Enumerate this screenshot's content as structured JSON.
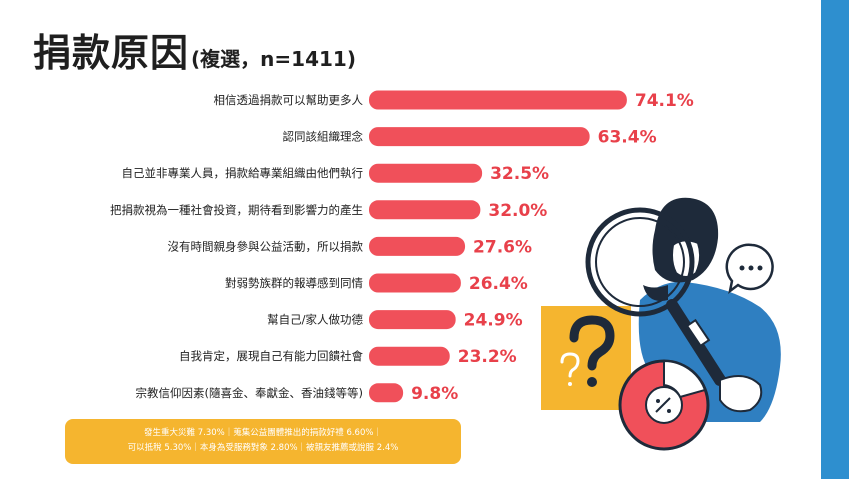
{
  "title": {
    "main": "捐款原因",
    "sub": "(複選，n=1411)"
  },
  "chart_data": {
    "type": "bar",
    "orientation": "horizontal",
    "categories": [
      "相信透過捐款可以幫助更多人",
      "認同該組織理念",
      "自己並非專業人員，捐款給專業組織由他們執行",
      "把捐款視為一種社會投資，期待看到影響力的產生",
      "沒有時間親身參與公益活動，所以捐款",
      "對弱勢族群的報導感到同情",
      "幫自己/家人做功德",
      "自我肯定，展現自己有能力回饋社會",
      "宗教信仰因素(隨喜金、奉獻金、香油錢等等)"
    ],
    "values": [
      74.1,
      63.4,
      32.5,
      32.0,
      27.6,
      26.4,
      24.9,
      23.2,
      9.8
    ],
    "labels": [
      "74.1%",
      "63.4%",
      "32.5%",
      "32.0%",
      "27.6%",
      "26.4%",
      "24.9%",
      "23.2%",
      "9.8%"
    ],
    "unit": "%",
    "bar_color": "#f0505a",
    "label_color": "#e8404a"
  },
  "footnote": {
    "line1": "發生重大災難 7.30%｜蒐集公益團體推出的捐款好禮 6.60%｜",
    "line2": "可以抵稅 5.30%｜本身為受服務對象 2.80%｜被親友推薦或說服 2.4%"
  },
  "colors": {
    "accent_blue": "#2e8fcf",
    "orange": "#f5b52f",
    "navy": "#1e2a3a",
    "shirt_blue": "#2f7fc1"
  },
  "icons": [
    "magnifier-person-illustration",
    "question-mark-card",
    "speech-bubble-icon",
    "donut-chart-graphic"
  ]
}
